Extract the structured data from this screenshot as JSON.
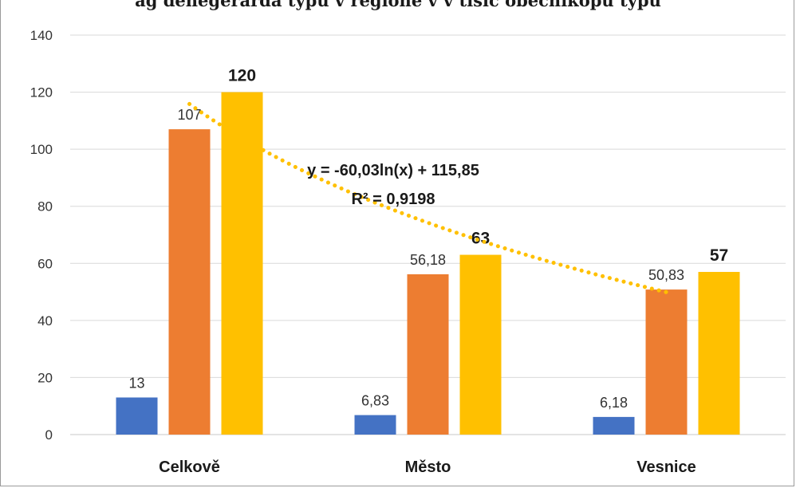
{
  "title": "ag denegerarda typu v regione v v tisíc obecníkopu typu",
  "chart_data": {
    "type": "bar",
    "categories": [
      "Celkově",
      "Město",
      "Vesnice"
    ],
    "series": [
      {
        "values": [
          13,
          6.83,
          6.18
        ],
        "labels": [
          "13",
          "6,83",
          "6,18"
        ],
        "color": "#4472C4",
        "label_bold": false
      },
      {
        "values": [
          107,
          56.18,
          50.83
        ],
        "labels": [
          "107",
          "56,18",
          "50,83"
        ],
        "color": "#ED7D31",
        "label_bold": false
      },
      {
        "values": [
          120,
          63,
          57
        ],
        "labels": [
          "120",
          "63",
          "57"
        ],
        "color": "#FFC000",
        "label_bold": true
      }
    ],
    "yticks": [
      "0",
      "20",
      "40",
      "60",
      "80",
      "100",
      "120",
      "140"
    ],
    "ylim": [
      0,
      140
    ],
    "grid": true,
    "trendline": {
      "type": "logarithmic",
      "series_index": 1,
      "a": -60.03,
      "b": 115.85,
      "color": "#FFC000",
      "equation": "y = -60,03ln(x) + 115,85",
      "r2": "R² = 0,9198"
    }
  }
}
